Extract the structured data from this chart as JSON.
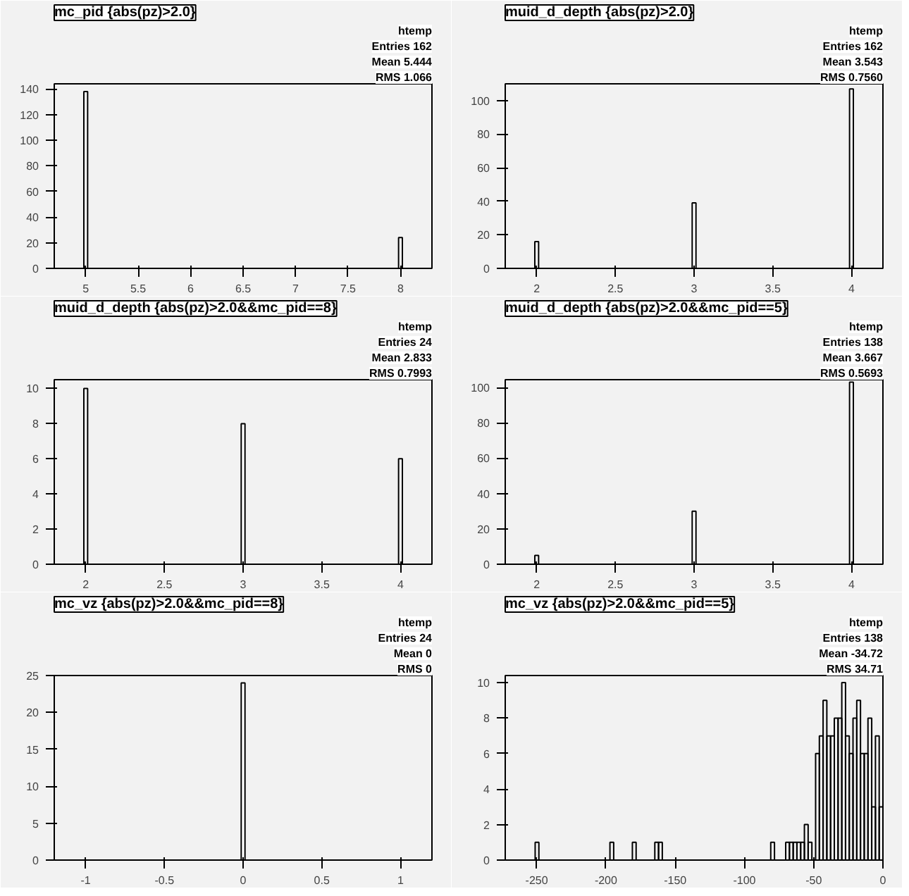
{
  "chart_data": [
    {
      "type": "bar",
      "title": "mc_pid {abs(pz)>2.0}",
      "x": [
        5,
        8
      ],
      "values": [
        138,
        24
      ],
      "color": "#000000",
      "xlim": [
        4.7,
        8.3
      ],
      "ylim": [
        0,
        144
      ],
      "xticks": [
        5,
        5.5,
        6,
        6.5,
        7,
        7.5,
        8
      ],
      "yticks": [
        0,
        20,
        40,
        60,
        80,
        100,
        120,
        140
      ],
      "annotations": [
        "htemp",
        "Entries 162",
        "Mean 5.444",
        "RMS 1.066"
      ]
    },
    {
      "type": "bar",
      "title": "muid_d_depth {abs(pz)>2.0}",
      "x": [
        2,
        3,
        4
      ],
      "values": [
        16,
        39,
        107
      ],
      "color": "#000000",
      "xlim": [
        1.8,
        4.2
      ],
      "ylim": [
        0,
        110
      ],
      "xticks": [
        2,
        2.5,
        3,
        3.5,
        4
      ],
      "yticks": [
        0,
        20,
        40,
        60,
        80,
        100
      ],
      "annotations": [
        "htemp",
        "Entries 162",
        "Mean 3.543",
        "RMS 0.7560"
      ]
    },
    {
      "type": "bar",
      "title": "muid_d_depth {abs(pz)>2.0&&mc_pid==8}",
      "x": [
        2,
        3,
        4
      ],
      "values": [
        10,
        8,
        6
      ],
      "color": "#000000",
      "xlim": [
        1.8,
        4.2
      ],
      "ylim": [
        0,
        10.5
      ],
      "xticks": [
        2,
        2.5,
        3,
        3.5,
        4
      ],
      "yticks": [
        0,
        2,
        4,
        6,
        8,
        10
      ],
      "annotations": [
        "htemp",
        "Entries 24",
        "Mean 2.833",
        "RMS 0.7993"
      ]
    },
    {
      "type": "bar",
      "title": "muid_d_depth {abs(pz)>2.0&&mc_pid==5}",
      "x": [
        2,
        3,
        4
      ],
      "values": [
        5,
        30,
        103
      ],
      "color": "#000000",
      "xlim": [
        1.8,
        4.2
      ],
      "ylim": [
        0,
        104.4
      ],
      "xticks": [
        2,
        2.5,
        3,
        3.5,
        4
      ],
      "yticks": [
        0,
        20,
        40,
        60,
        80,
        100
      ],
      "annotations": [
        "htemp",
        "Entries 138",
        "Mean 3.667",
        "RMS 0.5693"
      ]
    },
    {
      "type": "bar",
      "title": "mc_vz {abs(pz)>2.0&&mc_pid==8}",
      "x": [
        0
      ],
      "values": [
        24
      ],
      "color": "#000000",
      "xlim": [
        -1.2,
        1.2
      ],
      "ylim": [
        0,
        25
      ],
      "xticks": [
        -1,
        -0.5,
        0,
        0.5,
        1
      ],
      "yticks": [
        0,
        5,
        10,
        15,
        20,
        25
      ],
      "annotations": [
        "htemp",
        "Entries 24",
        "Mean 0",
        "RMS 0"
      ]
    },
    {
      "type": "histogram",
      "title": "mc_vz {abs(pz)>2.0&&mc_pid==5}",
      "color": "#000000",
      "xlim": [
        -272.7,
        0
      ],
      "ylim": [
        0,
        10.4
      ],
      "xticks": [
        -250,
        -200,
        -150,
        -100,
        -50,
        0
      ],
      "yticks": [
        0,
        2,
        4,
        6,
        8,
        10
      ],
      "annotations": [
        "htemp",
        "Entries 138",
        "Mean -34.72",
        "RMS 34.71"
      ],
      "bins": [
        -272.7,
        -270.0,
        -267.3,
        -264.6,
        -261.9,
        -259.2,
        -256.5,
        -253.8,
        -251.1,
        -248.4,
        -245.7,
        -243.0,
        -240.3,
        -237.6,
        -234.9,
        -232.2,
        -229.5,
        -226.8,
        -224.1,
        -221.4,
        -218.7,
        -216.0,
        -213.3,
        -210.6,
        -207.9,
        -205.2,
        -202.5,
        -199.8,
        -197.1,
        -194.4,
        -191.7,
        -189.0,
        -186.3,
        -183.6,
        -180.9,
        -178.2,
        -175.5,
        -172.8,
        -170.1,
        -167.4,
        -164.7,
        -162.0,
        -159.3,
        -156.6,
        -153.9,
        -151.2,
        -148.5,
        -145.8,
        -143.1,
        -140.4,
        -137.7,
        -135.0,
        -132.3,
        -129.6,
        -126.9,
        -124.2,
        -121.5,
        -118.8,
        -116.1,
        -113.4,
        -110.7,
        -108.0,
        -105.3,
        -102.6,
        -99.9,
        -97.2,
        -94.5,
        -91.8,
        -89.1,
        -86.4,
        -83.7,
        -81.0,
        -78.3,
        -75.6,
        -72.9,
        -70.2,
        -67.5,
        -64.8,
        -62.1,
        -59.4,
        -56.7,
        -54.0,
        -51.3,
        -48.6,
        -45.9,
        -43.2,
        -40.5,
        -37.8,
        -35.1,
        -32.4,
        -29.7,
        -27.0,
        -24.3,
        -21.6,
        -18.9,
        -16.2,
        -13.5,
        -10.8,
        -8.1,
        -5.4,
        -2.7,
        0
      ],
      "values": [
        0,
        0,
        0,
        0,
        0,
        0,
        0,
        0,
        1,
        0,
        0,
        0,
        0,
        0,
        0,
        0,
        0,
        0,
        0,
        0,
        0,
        0,
        0,
        0,
        0,
        0,
        0,
        0,
        1,
        0,
        0,
        0,
        0,
        0,
        1,
        0,
        0,
        0,
        0,
        0,
        1,
        1,
        0,
        0,
        0,
        0,
        0,
        0,
        0,
        0,
        0,
        0,
        0,
        0,
        0,
        0,
        0,
        0,
        0,
        0,
        0,
        0,
        0,
        0,
        0,
        0,
        0,
        0,
        0,
        0,
        0,
        1,
        0,
        0,
        0,
        1,
        1,
        1,
        1,
        1,
        2,
        1,
        0,
        6,
        7,
        9,
        7,
        7,
        8,
        8,
        10,
        7,
        6,
        8,
        9,
        6,
        6,
        8,
        3,
        7,
        3
      ]
    }
  ]
}
